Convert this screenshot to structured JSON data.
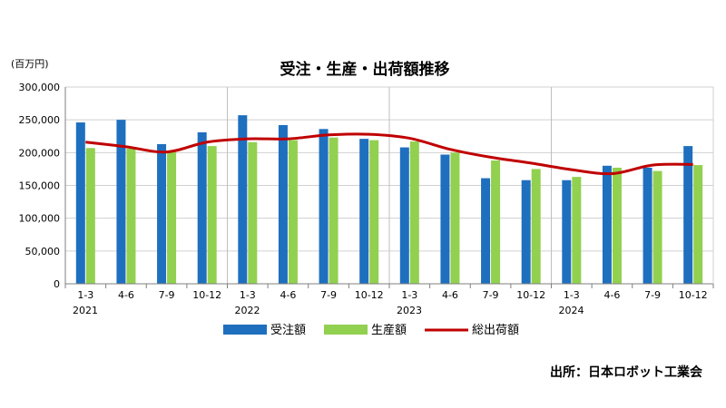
{
  "chart_data": {
    "type": "bar",
    "title": "受注・生産・出荷額推移",
    "unit_label": "(百万円)",
    "ylim": [
      0,
      300000
    ],
    "yticks": [
      "0",
      "50,000",
      "100,000",
      "150,000",
      "200,000",
      "250,000",
      "300,000"
    ],
    "categories": [
      "1-3",
      "4-6",
      "7-9",
      "10-12",
      "1-3",
      "4-6",
      "7-9",
      "10-12",
      "1-3",
      "4-6",
      "7-9",
      "10-12",
      "1-3",
      "4-6",
      "7-9",
      "10-12"
    ],
    "years": [
      "2021",
      "2022",
      "2023",
      "2024"
    ],
    "series": [
      {
        "name": "受注額",
        "type": "bar",
        "color": "#1F6FBF",
        "values": [
          246000,
          250000,
          213000,
          231000,
          257000,
          242000,
          236000,
          221000,
          208000,
          197000,
          161000,
          158000,
          158000,
          180000,
          177000,
          210000
        ]
      },
      {
        "name": "生産額",
        "type": "bar",
        "color": "#92D050",
        "values": [
          207000,
          206000,
          201000,
          210000,
          216000,
          219000,
          223000,
          219000,
          217000,
          200000,
          188000,
          175000,
          163000,
          177000,
          172000,
          181000
        ]
      },
      {
        "name": "総出荷額",
        "type": "line",
        "color": "#C00000",
        "values": [
          216000,
          209000,
          201000,
          216000,
          221000,
          221000,
          227000,
          228000,
          222000,
          205000,
          193000,
          184000,
          174000,
          168000,
          181000,
          182000
        ]
      }
    ],
    "grid": true,
    "legend_position": "bottom"
  },
  "source": "出所：日本ロボット工業会"
}
